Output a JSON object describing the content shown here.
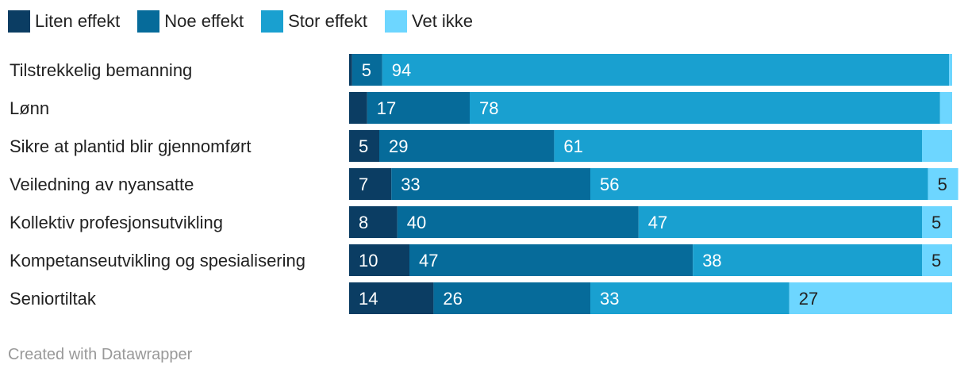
{
  "chart_data": {
    "type": "bar",
    "orientation": "horizontal-stacked",
    "categories": [
      "Tilstrekkelig bemanning",
      "Lønn",
      "Sikre at plantid blir gjennomført",
      "Veiledning av nyansatte",
      "Kollektiv profesjonsutvikling",
      "Kompetanseutvikling og spesialisering",
      "Seniortiltak"
    ],
    "series": [
      {
        "name": "Liten effekt",
        "color": "#0b3d63",
        "values": [
          0.5,
          3,
          5,
          7,
          8,
          10,
          14
        ],
        "labels": [
          "",
          "",
          "5",
          "7",
          "8",
          "10",
          "14"
        ]
      },
      {
        "name": "Noe effekt",
        "color": "#066b9a",
        "values": [
          5,
          17,
          29,
          33,
          40,
          47,
          26
        ],
        "labels": [
          "5",
          "17",
          "29",
          "33",
          "40",
          "47",
          "26"
        ]
      },
      {
        "name": "Stor effekt",
        "color": "#19a0d0",
        "values": [
          94,
          78,
          61,
          56,
          47,
          38,
          33
        ],
        "labels": [
          "94",
          "78",
          "61",
          "56",
          "47",
          "38",
          "33"
        ]
      },
      {
        "name": "Vet ikke",
        "color": "#6dd6ff",
        "values": [
          0.5,
          2,
          5,
          5,
          5,
          5,
          27
        ],
        "labels": [
          "",
          "",
          "",
          "5",
          "5",
          "5",
          "27"
        ]
      }
    ],
    "xlim": [
      0,
      100
    ],
    "legend": "top-left"
  },
  "footer": "Created with Datawrapper"
}
